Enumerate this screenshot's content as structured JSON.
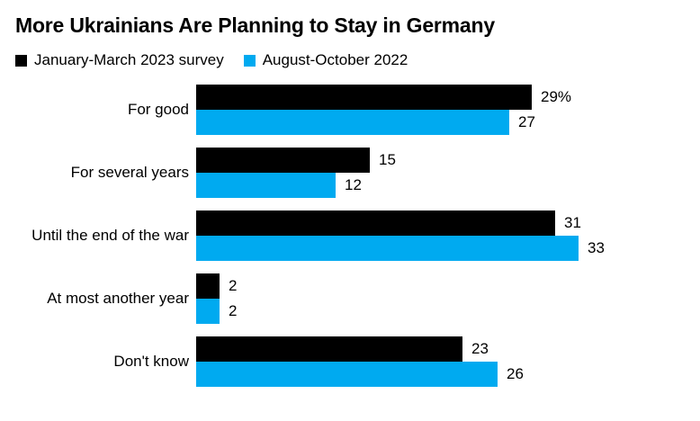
{
  "chart_data": {
    "type": "bar",
    "orientation": "horizontal",
    "title": "More Ukrainians Are Planning to Stay in Germany",
    "categories": [
      "For good",
      "For several years",
      "Until the end of the war",
      "At most another year",
      "Don't know"
    ],
    "series": [
      {
        "name": "January-March 2023 survey",
        "color": "#000000",
        "values": [
          29,
          15,
          31,
          2,
          23
        ],
        "value_labels": [
          "29%",
          "15",
          "31",
          "2",
          "23"
        ]
      },
      {
        "name": "August-October 2022",
        "color": "#00aaf0",
        "values": [
          27,
          12,
          33,
          2,
          26
        ],
        "value_labels": [
          "27",
          "12",
          "33",
          "2",
          "26"
        ]
      }
    ],
    "xlim": [
      0,
      33
    ],
    "grid": false,
    "legend_position": "top-left",
    "value_labels_shown": true,
    "axis_ticks_shown": false
  }
}
